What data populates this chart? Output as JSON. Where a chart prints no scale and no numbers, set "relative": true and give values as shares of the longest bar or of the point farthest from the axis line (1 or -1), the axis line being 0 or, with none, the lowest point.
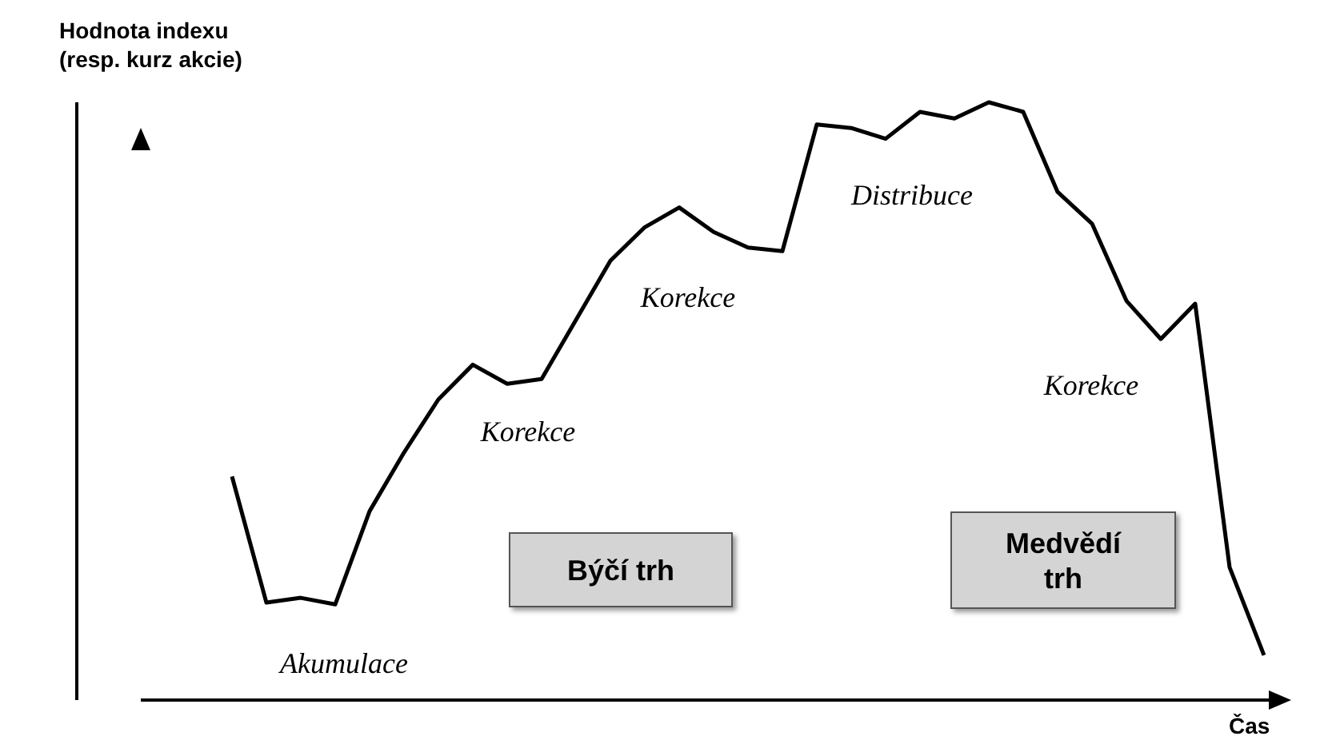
{
  "chart_data": {
    "type": "line",
    "relative": true,
    "xlabel": "Čas",
    "ylabel": "Hodnota indexu\n(resp. kurz akcie)",
    "categories": [
      null,
      null,
      null,
      null,
      null,
      null,
      null,
      null,
      null,
      null,
      null,
      null,
      null,
      null,
      null,
      null,
      null,
      null,
      null,
      null,
      null,
      null,
      null,
      null,
      null,
      null,
      null,
      null,
      null,
      null,
      null
    ],
    "series": [
      {
        "color": "#000000",
        "values": [
          0.374,
          0.163,
          0.171,
          0.16,
          0.316,
          0.414,
          0.503,
          0.561,
          0.529,
          0.537,
          0.636,
          0.735,
          0.791,
          0.824,
          0.783,
          0.757,
          0.751,
          0.963,
          0.957,
          0.939,
          0.984,
          0.973,
          1,
          0.984,
          0.85,
          0.797,
          0.668,
          0.604,
          0.663,
          0.222,
          0.075
        ]
      }
    ],
    "annotations": [
      "Akumulace",
      "Korekce",
      "Korekce",
      "Distribuce",
      "Korekce",
      "Býčí trh",
      "Medvědí trh"
    ]
  }
}
